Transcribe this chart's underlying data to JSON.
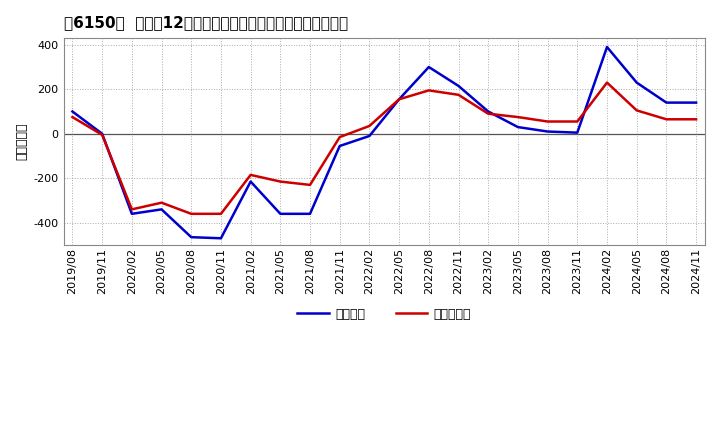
{
  "title_bracket": "[6150]",
  "ylabel": "（百万円）",
  "background_color": "#ffffff",
  "plot_bg_color": "#ffffff",
  "grid_color": "#aaaaaa",
  "ylim": [
    -500,
    430
  ],
  "yticks": [
    -400,
    -200,
    0,
    200,
    400
  ],
  "x_labels": [
    "2019/08",
    "2019/11",
    "2020/02",
    "2020/05",
    "2020/08",
    "2020/11",
    "2021/02",
    "2021/05",
    "2021/08",
    "2021/11",
    "2022/02",
    "2022/05",
    "2022/08",
    "2022/11",
    "2023/02",
    "2023/05",
    "2023/08",
    "2023/11",
    "2024/02",
    "2024/05",
    "2024/08",
    "2024/11"
  ],
  "operating_profit": [
    100,
    0,
    -360,
    -340,
    -465,
    -470,
    -215,
    -360,
    -360,
    -55,
    -10,
    155,
    300,
    215,
    100,
    30,
    10,
    5,
    390,
    230,
    140,
    140
  ],
  "net_profit": [
    75,
    -5,
    -340,
    -310,
    -360,
    -360,
    -185,
    -215,
    -230,
    -15,
    35,
    155,
    195,
    175,
    90,
    75,
    55,
    55,
    230,
    105,
    65,
    65
  ],
  "line_color_operating": "#0000cc",
  "line_color_net": "#cc0000",
  "line_width": 1.8,
  "legend_operating": "経常利益",
  "legend_net": "当期純利益",
  "title_fontsize": 11,
  "axis_fontsize": 8,
  "legend_fontsize": 9
}
